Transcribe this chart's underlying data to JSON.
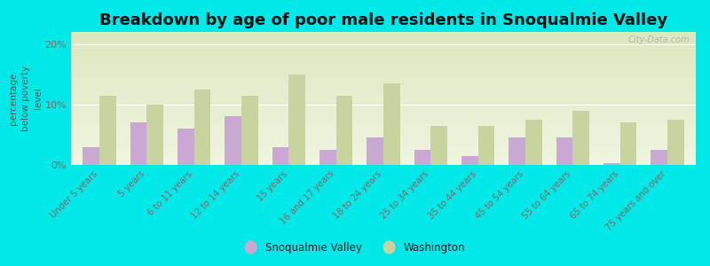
{
  "title": "Breakdown by age of poor male residents in Snoqualmie Valley",
  "categories": [
    "Under 5 years",
    "5 years",
    "6 to 11 years",
    "12 to 14 years",
    "15 years",
    "16 and 17 years",
    "18 to 24 years",
    "25 to 34 years",
    "35 to 44 years",
    "45 to 54 years",
    "55 to 64 years",
    "65 to 74 years",
    "75 years and over"
  ],
  "snoqualmie_values": [
    3.0,
    7.0,
    6.0,
    8.0,
    3.0,
    2.5,
    4.5,
    2.5,
    1.5,
    4.5,
    4.5,
    0.3,
    2.5
  ],
  "washington_values": [
    11.5,
    10.0,
    12.5,
    11.5,
    15.0,
    11.5,
    13.5,
    6.5,
    6.5,
    7.5,
    9.0,
    7.0,
    7.5
  ],
  "snoqualmie_color": "#c9a8d4",
  "washington_color": "#c8d4a0",
  "background_color": "#00e8e8",
  "plot_bg_top": "#dce8c0",
  "plot_bg_bottom": "#f0f5e0",
  "ylabel": "percentage\nbelow poverty\nlevel",
  "ylim": [
    0,
    22
  ],
  "yticks": [
    0,
    10,
    20
  ],
  "ytick_labels": [
    "0%",
    "10%",
    "20%"
  ],
  "title_fontsize": 13,
  "xlabel_fontsize": 7.2,
  "ylabel_fontsize": 7.5,
  "legend_labels": [
    "Snoqualmie Valley",
    "Washington"
  ],
  "watermark": "City-Data.com",
  "bar_width": 0.35,
  "tick_color": "#886666",
  "ylabel_color": "#555555"
}
